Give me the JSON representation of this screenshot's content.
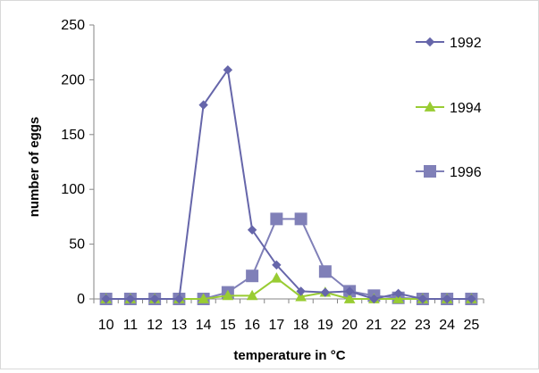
{
  "chart_data": {
    "type": "line",
    "title": "",
    "xlabel": "temperature in °C",
    "ylabel": "number of eggs",
    "x": [
      10,
      11,
      12,
      13,
      14,
      15,
      16,
      17,
      18,
      19,
      20,
      21,
      22,
      23,
      24,
      25
    ],
    "ylim": [
      0,
      250
    ],
    "yticks": [
      0,
      50,
      100,
      150,
      200,
      250
    ],
    "grid": false,
    "legend_position": "right",
    "series": [
      {
        "name": "1992",
        "color": "#6666aa",
        "marker": "diamond",
        "values": [
          0,
          0,
          0,
          0,
          177,
          209,
          63,
          31,
          7,
          6,
          7,
          0,
          5,
          0,
          0,
          0
        ]
      },
      {
        "name": "1994",
        "color": "#99cc33",
        "marker": "triangle",
        "values": [
          0,
          0,
          0,
          0,
          0,
          3,
          3,
          19,
          2,
          6,
          0,
          0,
          0,
          0,
          0,
          0
        ]
      },
      {
        "name": "1996",
        "color": "#8080b8",
        "marker": "square",
        "values": [
          0,
          0,
          0,
          0,
          0,
          6,
          21,
          73,
          73,
          25,
          7,
          3,
          1,
          0,
          0,
          0
        ]
      }
    ]
  }
}
